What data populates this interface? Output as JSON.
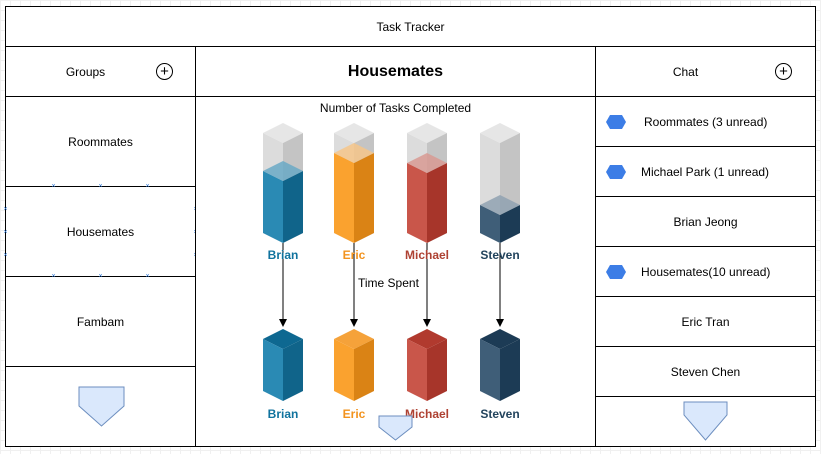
{
  "app": {
    "title": "Task Tracker"
  },
  "groups": {
    "header": "Groups",
    "items": [
      "Roommates",
      "Housemates",
      "Fambam"
    ],
    "selected": "Housemates"
  },
  "main": {
    "title": "Housemates",
    "chart_title": "Number of Tasks Completed",
    "time_label": "Time Spent"
  },
  "chat": {
    "header": "Chat",
    "items": [
      {
        "label": "Roommates (3 unread)",
        "unread": true
      },
      {
        "label": "Michael Park (1 unread)",
        "unread": true
      },
      {
        "label": "Brian Jeong",
        "unread": false
      },
      {
        "label": "Housemates(10 unread)",
        "unread": true
      },
      {
        "label": "Eric Tran",
        "unread": false
      },
      {
        "label": "Steven Chen",
        "unread": false
      }
    ]
  },
  "colors": {
    "brian": "#10739e",
    "eric": "#f2931e",
    "michael": "#ae4132",
    "steven": "#23445d",
    "unread_marker": "#3c7de6"
  },
  "chart_data": [
    {
      "type": "bar",
      "title": "Number of Tasks Completed",
      "categories": [
        "Brian",
        "Eric",
        "Michael",
        "Steven"
      ],
      "values": [
        0.67,
        0.78,
        0.75,
        0.33
      ],
      "fill_note": "relative fill of each 3D cylinder"
    },
    {
      "type": "bar",
      "title": "Time Spent",
      "categories": [
        "Brian",
        "Eric",
        "Michael",
        "Steven"
      ],
      "values": [
        1,
        1,
        1,
        1
      ]
    }
  ]
}
